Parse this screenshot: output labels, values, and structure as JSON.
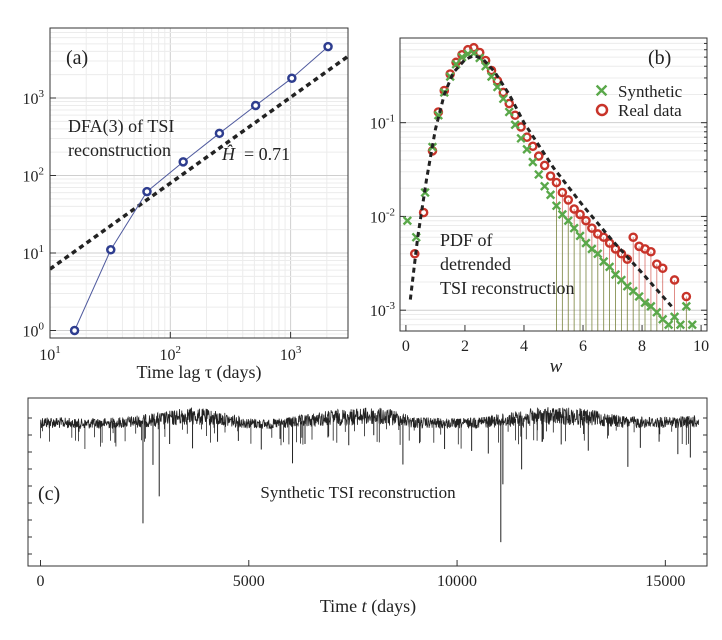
{
  "chart_data": [
    {
      "type": "line",
      "panel_label": "(a)",
      "title": "DFA(3) of TSI reconstruction",
      "title_lines": [
        "DFA(3) of TSI",
        "reconstruction"
      ],
      "xlabel": "Time lag τ (days)",
      "ylabel": "",
      "xscale": "log",
      "yscale": "log",
      "xlim": [
        10,
        3000
      ],
      "ylim": [
        0.8,
        8000
      ],
      "xticks": [
        10,
        100,
        1000
      ],
      "xtick_labels": [
        {
          "base": "10",
          "exp": "1"
        },
        {
          "base": "10",
          "exp": "2"
        },
        {
          "base": "10",
          "exp": "3"
        }
      ],
      "yticks": [
        1,
        10,
        100,
        1000
      ],
      "ytick_labels": [
        {
          "base": "10",
          "exp": "0"
        },
        {
          "base": "10",
          "exp": "1"
        },
        {
          "base": "10",
          "exp": "2"
        },
        {
          "base": "10",
          "exp": "3"
        }
      ],
      "grid": true,
      "annotation": {
        "symbol": "Ĥ",
        "text": "= 0.71"
      },
      "series": [
        {
          "name": "DFA(3) fluctuation",
          "style": "markers+line",
          "color": "#2e3d8f",
          "x": [
            16,
            32,
            64,
            128,
            256,
            512,
            1024,
            2048
          ],
          "y": [
            1.0,
            11,
            62,
            150,
            350,
            800,
            1800,
            4600
          ]
        },
        {
          "name": "power-law fit",
          "style": "dashed",
          "color": "#222222",
          "x": [
            10,
            3000
          ],
          "y": [
            6.2,
            3450
          ]
        }
      ]
    },
    {
      "type": "scatter",
      "panel_label": "(b)",
      "title": "PDF of detrended TSI reconstruction",
      "title_lines": [
        "PDF of",
        "detrended",
        "TSI reconstruction"
      ],
      "xlabel": "w",
      "ylabel": "",
      "yscale": "log",
      "xlim": [
        -0.2,
        10.2
      ],
      "ylim": [
        0.0006,
        0.8
      ],
      "xticks": [
        0,
        2,
        4,
        6,
        8,
        10
      ],
      "xtick_labels": [
        "0",
        "2",
        "4",
        "6",
        "8",
        "10"
      ],
      "yticks": [
        0.001,
        0.01,
        0.1
      ],
      "ytick_labels": [
        {
          "base": "10",
          "exp": "-3"
        },
        {
          "base": "10",
          "exp": "-2"
        },
        {
          "base": "10",
          "exp": "-1"
        }
      ],
      "legend": {
        "position": "top-right",
        "entries": [
          "Synthetic",
          "Real data"
        ]
      },
      "series": [
        {
          "name": "Synthetic",
          "marker": "x",
          "color": "#5aa84a",
          "x": [
            0.05,
            0.35,
            0.65,
            0.9,
            1.1,
            1.3,
            1.5,
            1.7,
            1.9,
            2.1,
            2.3,
            2.5,
            2.7,
            2.9,
            3.1,
            3.3,
            3.5,
            3.7,
            3.9,
            4.1,
            4.3,
            4.5,
            4.7,
            4.9,
            5.1,
            5.3,
            5.5,
            5.7,
            5.9,
            6.1,
            6.3,
            6.5,
            6.7,
            6.9,
            7.1,
            7.3,
            7.5,
            7.7,
            7.9,
            8.1,
            8.3,
            8.5,
            8.7,
            8.9,
            9.1,
            9.3,
            9.5,
            9.7
          ],
          "y": [
            0.009,
            0.006,
            0.018,
            0.055,
            0.12,
            0.21,
            0.31,
            0.42,
            0.5,
            0.54,
            0.55,
            0.49,
            0.4,
            0.31,
            0.24,
            0.18,
            0.13,
            0.095,
            0.068,
            0.052,
            0.038,
            0.028,
            0.021,
            0.017,
            0.013,
            0.0105,
            0.009,
            0.0075,
            0.0062,
            0.0052,
            0.0045,
            0.004,
            0.0033,
            0.0029,
            0.0024,
            0.0021,
            0.0018,
            0.0016,
            0.0014,
            0.0012,
            0.0011,
            0.00095,
            0.0008,
            0.0007,
            0.00085,
            0.0007,
            0.0011,
            0.0007
          ]
        },
        {
          "name": "Real data",
          "marker": "o",
          "color": "#c8342a",
          "x": [
            0.3,
            0.6,
            0.9,
            1.1,
            1.3,
            1.5,
            1.7,
            1.9,
            2.1,
            2.3,
            2.5,
            2.7,
            2.9,
            3.1,
            3.3,
            3.5,
            3.7,
            3.9,
            4.1,
            4.3,
            4.5,
            4.7,
            4.9,
            5.1,
            5.3,
            5.5,
            5.7,
            5.9,
            6.1,
            6.3,
            6.5,
            6.7,
            6.9,
            7.1,
            7.3,
            7.5,
            7.7,
            7.9,
            8.1,
            8.3,
            8.5,
            8.7,
            9.1,
            9.5
          ],
          "y": [
            0.004,
            0.011,
            0.05,
            0.13,
            0.22,
            0.33,
            0.44,
            0.53,
            0.6,
            0.63,
            0.56,
            0.46,
            0.36,
            0.28,
            0.21,
            0.16,
            0.12,
            0.09,
            0.07,
            0.056,
            0.044,
            0.035,
            0.027,
            0.023,
            0.018,
            0.015,
            0.012,
            0.0105,
            0.009,
            0.0075,
            0.0065,
            0.006,
            0.0052,
            0.0045,
            0.004,
            0.0035,
            0.006,
            0.0048,
            0.0045,
            0.0042,
            0.0031,
            0.0028,
            0.0021,
            0.0014
          ]
        },
        {
          "name": "fit",
          "style": "dashed",
          "color": "#222222",
          "x": [
            0.15,
            0.4,
            0.7,
            1.0,
            1.3,
            1.6,
            2.0,
            2.3,
            2.6,
            3.0,
            3.5,
            4.0,
            5.0,
            6.0,
            7.0,
            8.0,
            9.0
          ],
          "y": [
            0.0013,
            0.006,
            0.025,
            0.085,
            0.2,
            0.34,
            0.47,
            0.52,
            0.48,
            0.35,
            0.2,
            0.1,
            0.033,
            0.013,
            0.0055,
            0.0025,
            0.0011
          ]
        }
      ]
    },
    {
      "type": "line",
      "panel_label": "(c)",
      "title": "Synthetic TSI reconstruction",
      "xlabel_prefix": "Time",
      "xlabel_var": "t",
      "xlabel_suffix": "(days)",
      "ylabel": "",
      "xlim": [
        -300,
        16000
      ],
      "xticks": [
        0,
        5000,
        10000,
        15000
      ],
      "xtick_labels": [
        "0",
        "5000",
        "10000",
        "15000"
      ],
      "series": [
        {
          "name": "Synthetic TSI",
          "color": "#222222",
          "envelope_t": [
            0,
            1000,
            2000,
            3000,
            3500,
            4000,
            5000,
            5500,
            6000,
            7000,
            8000,
            8500,
            9000,
            10000,
            11000,
            12000,
            13000,
            14000,
            15000,
            15800
          ],
          "envelope_level": [
            0.5,
            0.35,
            0.45,
            0.75,
            1.0,
            0.9,
            0.4,
            0.3,
            0.45,
            0.85,
            1.0,
            0.85,
            0.45,
            0.35,
            0.6,
            1.0,
            0.95,
            0.5,
            0.45,
            0.55
          ],
          "dips_t": [
            2460,
            2700,
            2850,
            3100,
            3650,
            4250,
            4750,
            5300,
            5750,
            6050,
            6350,
            6900,
            7400,
            8000,
            8700,
            9100,
            9700,
            10350,
            10750,
            11050,
            11100,
            11550,
            12050,
            12500,
            13150,
            14100,
            14400,
            14850,
            15300,
            15600
          ],
          "dips_depth": [
            0.8,
            0.35,
            0.6,
            0.2,
            0.25,
            0.18,
            0.15,
            0.2,
            0.12,
            0.32,
            0.18,
            0.15,
            0.22,
            0.15,
            0.35,
            0.16,
            0.2,
            0.22,
            0.25,
            0.95,
            0.5,
            0.4,
            0.2,
            0.22,
            0.26,
            0.35,
            0.2,
            0.15,
            0.25,
            0.28
          ]
        }
      ]
    }
  ]
}
